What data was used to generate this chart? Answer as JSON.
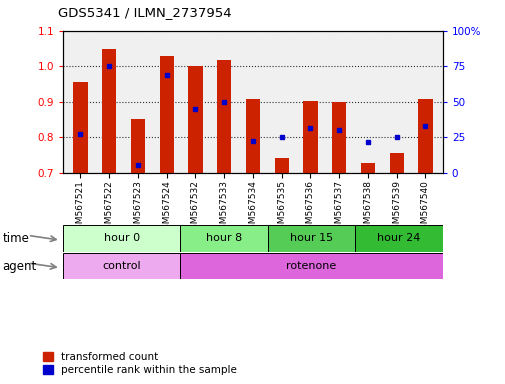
{
  "title": "GDS5341 / ILMN_2737954",
  "samples": [
    "GSM567521",
    "GSM567522",
    "GSM567523",
    "GSM567524",
    "GSM567532",
    "GSM567533",
    "GSM567534",
    "GSM567535",
    "GSM567536",
    "GSM567537",
    "GSM567538",
    "GSM567539",
    "GSM567540"
  ],
  "red_top": [
    0.955,
    1.048,
    0.852,
    1.03,
    1.0,
    1.018,
    0.908,
    0.742,
    0.902,
    0.9,
    0.727,
    0.756,
    0.908
  ],
  "red_bottom": [
    0.7,
    0.7,
    0.7,
    0.7,
    0.7,
    0.7,
    0.7,
    0.7,
    0.7,
    0.7,
    0.7,
    0.7,
    0.7
  ],
  "blue_y": [
    0.81,
    1.0,
    0.723,
    0.975,
    0.88,
    0.898,
    0.79,
    0.8,
    0.825,
    0.82,
    0.788,
    0.8,
    0.832
  ],
  "ylim_left": [
    0.7,
    1.1
  ],
  "ylim_right": [
    0,
    100
  ],
  "yticks_left": [
    0.7,
    0.8,
    0.9,
    1.0,
    1.1
  ],
  "yticks_right": [
    0,
    25,
    50,
    75,
    100
  ],
  "ytick_right_labels": [
    "0",
    "25",
    "50",
    "75",
    "100%"
  ],
  "bar_color": "#cc2200",
  "dot_color": "#0000cc",
  "time_groups": [
    {
      "label": "hour 0",
      "start": 0,
      "end": 4,
      "color": "#ccffcc"
    },
    {
      "label": "hour 8",
      "start": 4,
      "end": 7,
      "color": "#88ee88"
    },
    {
      "label": "hour 15",
      "start": 7,
      "end": 10,
      "color": "#55cc55"
    },
    {
      "label": "hour 24",
      "start": 10,
      "end": 13,
      "color": "#33bb33"
    }
  ],
  "agent_groups": [
    {
      "label": "control",
      "start": 0,
      "end": 4,
      "color": "#eeaaee"
    },
    {
      "label": "rotenone",
      "start": 4,
      "end": 13,
      "color": "#dd66dd"
    }
  ],
  "time_row_label": "time",
  "agent_row_label": "agent"
}
